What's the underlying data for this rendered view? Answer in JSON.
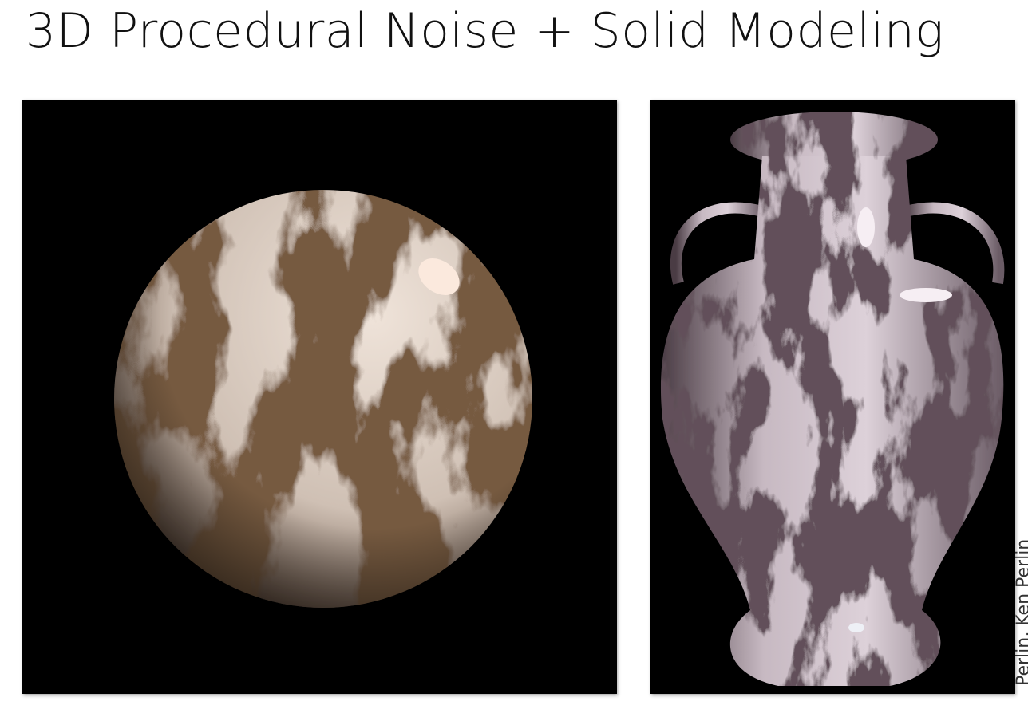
{
  "title": "3D Procedural Noise + Solid Modeling",
  "credit": "Perlin, Ken Perlin"
}
